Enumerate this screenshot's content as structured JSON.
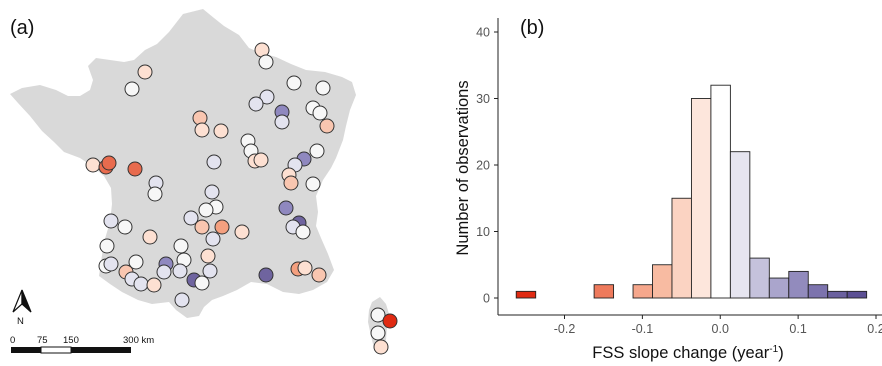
{
  "map_panel": {
    "label": "(a)",
    "north_label": "N",
    "scale_ticks": [
      "0",
      "75",
      "150",
      "300 km"
    ],
    "land_color": "#d9d9d9",
    "station_colors": [
      "#f7f7f7",
      "#e3e3ef",
      "#c4c2de",
      "#8f88bf",
      "#6f649f",
      "#fde0d2",
      "#f9c6b0",
      "#f4a07f",
      "#e86b4e",
      "#e02a12"
    ]
  },
  "chart_data": {
    "type": "bar",
    "label": "(b)",
    "xlabel": "FSS slope change (year",
    "xlabel_sup": "-1",
    "xlabel_end": ")",
    "ylabel": "Number of observations",
    "xlim": [
      -0.27,
      0.2
    ],
    "ylim": [
      0,
      40
    ],
    "xticks": [
      -0.2,
      -0.1,
      0.0,
      0.1,
      0.2
    ],
    "xtick_labels": [
      "-0.2",
      "-0.1",
      "0.0",
      "0.1",
      "0.2"
    ],
    "yticks": [
      0,
      10,
      20,
      30,
      40
    ],
    "ytick_labels": [
      "0",
      "10",
      "20",
      "30",
      "40"
    ],
    "bin_width": 0.025,
    "bins": [
      {
        "x0": -0.262,
        "count": 1,
        "color": "#e02a12"
      },
      {
        "x0": -0.162,
        "count": 2,
        "color": "#ee7a5c"
      },
      {
        "x0": -0.112,
        "count": 2,
        "color": "#f6a78c"
      },
      {
        "x0": -0.087,
        "count": 5,
        "color": "#f8bba2"
      },
      {
        "x0": -0.062,
        "count": 15,
        "color": "#fbd3c2"
      },
      {
        "x0": -0.037,
        "count": 30,
        "color": "#fde6dc"
      },
      {
        "x0": -0.012,
        "count": 32,
        "color": "#ffffff"
      },
      {
        "x0": 0.013,
        "count": 22,
        "color": "#e6e5f0"
      },
      {
        "x0": 0.038,
        "count": 6,
        "color": "#c5c2dc"
      },
      {
        "x0": 0.063,
        "count": 3,
        "color": "#aaa5cc"
      },
      {
        "x0": 0.088,
        "count": 4,
        "color": "#928bbd"
      },
      {
        "x0": 0.113,
        "count": 2,
        "color": "#7c73ad"
      },
      {
        "x0": 0.138,
        "count": 1,
        "color": "#6b619f"
      },
      {
        "x0": 0.163,
        "count": 1,
        "color": "#5c5094"
      }
    ]
  }
}
